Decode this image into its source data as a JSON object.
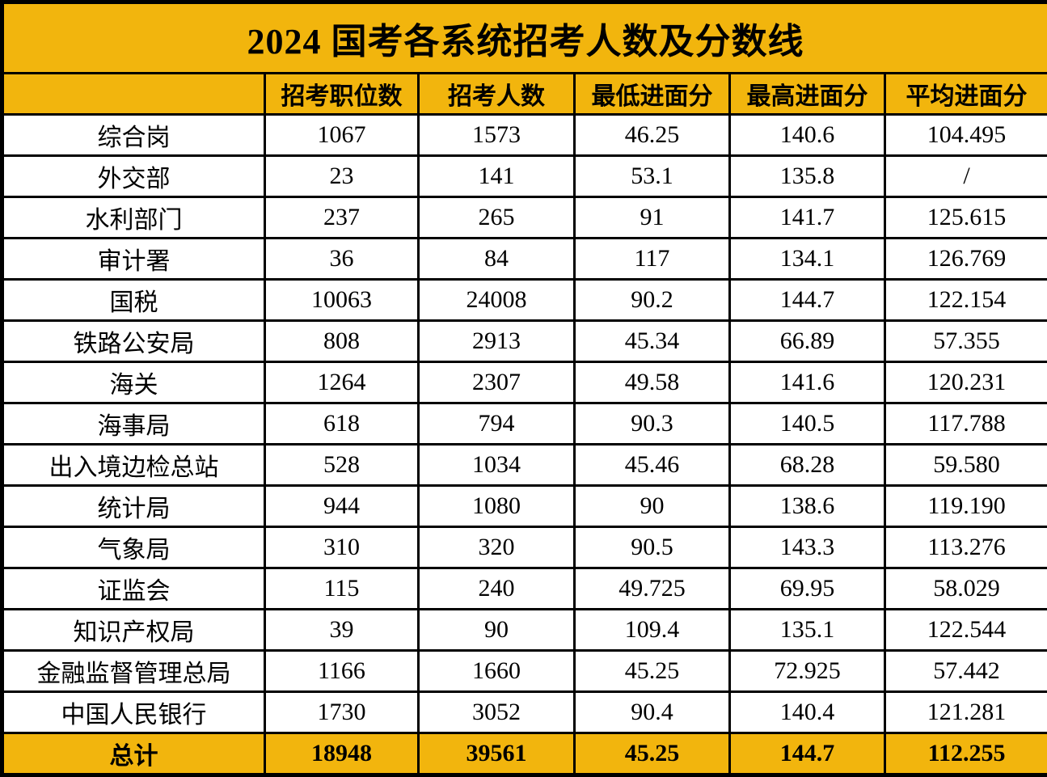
{
  "chart_data": {
    "type": "table",
    "title": "2024 国考各系统招考人数及分数线",
    "columns": [
      "",
      "招考职位数",
      "招考人数",
      "最低进面分",
      "最高进面分",
      "平均进面分"
    ],
    "rows": [
      {
        "name": "综合岗",
        "values": [
          "1067",
          "1573",
          "46.25",
          "140.6",
          "104.495"
        ]
      },
      {
        "name": "外交部",
        "values": [
          "23",
          "141",
          "53.1",
          "135.8",
          "/"
        ]
      },
      {
        "name": "水利部门",
        "values": [
          "237",
          "265",
          "91",
          "141.7",
          "125.615"
        ]
      },
      {
        "name": "审计署",
        "values": [
          "36",
          "84",
          "117",
          "134.1",
          "126.769"
        ]
      },
      {
        "name": "国税",
        "values": [
          "10063",
          "24008",
          "90.2",
          "144.7",
          "122.154"
        ]
      },
      {
        "name": "铁路公安局",
        "values": [
          "808",
          "2913",
          "45.34",
          "66.89",
          "57.355"
        ]
      },
      {
        "name": "海关",
        "values": [
          "1264",
          "2307",
          "49.58",
          "141.6",
          "120.231"
        ]
      },
      {
        "name": "海事局",
        "values": [
          "618",
          "794",
          "90.3",
          "140.5",
          "117.788"
        ]
      },
      {
        "name": "出入境边检总站",
        "values": [
          "528",
          "1034",
          "45.46",
          "68.28",
          "59.580"
        ]
      },
      {
        "name": "统计局",
        "values": [
          "944",
          "1080",
          "90",
          "138.6",
          "119.190"
        ]
      },
      {
        "name": "气象局",
        "values": [
          "310",
          "320",
          "90.5",
          "143.3",
          "113.276"
        ]
      },
      {
        "name": "证监会",
        "values": [
          "115",
          "240",
          "49.725",
          "69.95",
          "58.029"
        ]
      },
      {
        "name": "知识产权局",
        "values": [
          "39",
          "90",
          "109.4",
          "135.1",
          "122.544"
        ]
      },
      {
        "name": "金融监督管理总局",
        "values": [
          "1166",
          "1660",
          "45.25",
          "72.925",
          "57.442"
        ]
      },
      {
        "name": "中国人民银行",
        "values": [
          "1730",
          "3052",
          "90.4",
          "140.4",
          "121.281"
        ]
      }
    ],
    "total_row": {
      "name": "总计",
      "values": [
        "18948",
        "39561",
        "45.25",
        "144.7",
        "112.255"
      ]
    }
  },
  "colors": {
    "accent_yellow": "#F2B50D",
    "border_black": "#000000",
    "row_white": "#FFFFFF",
    "text_black": "#000000"
  }
}
